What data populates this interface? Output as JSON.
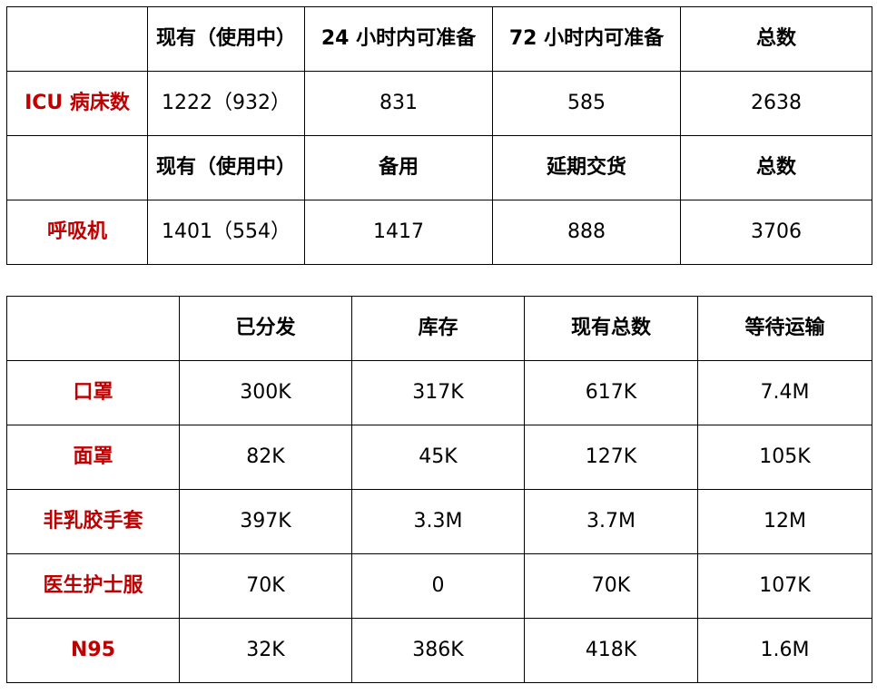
{
  "colors": {
    "row_label": "#c00000",
    "text": "#000000",
    "border": "#000000",
    "background": "#ffffff"
  },
  "table_top": {
    "icu_header": [
      "",
      "现有（使用中）",
      "24 小时内可准备",
      "72 小时内可准备",
      "总数"
    ],
    "icu_row": [
      "ICU 病床数",
      "1222（932）",
      "831",
      "585",
      "2638"
    ],
    "vent_header": [
      "",
      "现有（使用中）",
      "备用",
      "延期交货",
      "总数"
    ],
    "vent_row": [
      "呼吸机",
      "1401（554）",
      "1417",
      "888",
      "3706"
    ]
  },
  "table_bottom": {
    "header": [
      "",
      "已分发",
      "库存",
      "现有总数",
      "等待运输"
    ],
    "rows": [
      [
        "口罩",
        "300K",
        "317K",
        "617K",
        "7.4M"
      ],
      [
        "面罩",
        "82K",
        "45K",
        "127K",
        "105K"
      ],
      [
        "非乳胶手套",
        "397K",
        "3.3M",
        "3.7M",
        "12M"
      ],
      [
        "医生护士服",
        "70K",
        "0",
        "70K",
        "107K"
      ],
      [
        "N95",
        "32K",
        "386K",
        "418K",
        "1.6M"
      ]
    ]
  }
}
